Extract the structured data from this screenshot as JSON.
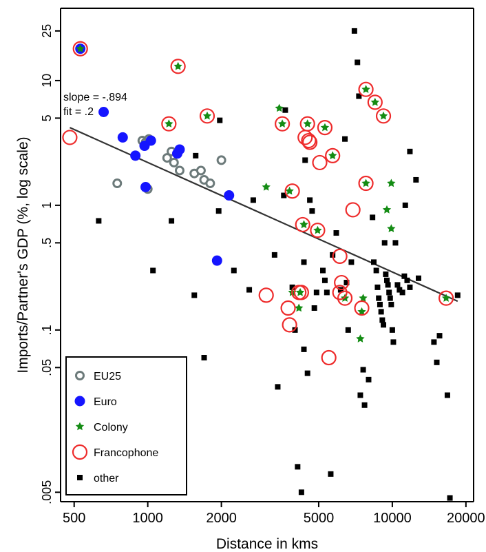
{
  "chart_data": {
    "type": "scatter",
    "title": "",
    "xlabel": "Distance in kms",
    "ylabel": "Imports/Partner's GDP (%, log scale)",
    "x_scale": "log",
    "y_scale": "log",
    "xlim": [
      440,
      21500
    ],
    "ylim": [
      0.0042,
      38
    ],
    "x_ticks": [
      {
        "value": 500,
        "label": "500"
      },
      {
        "value": 1000,
        "label": "1000"
      },
      {
        "value": 2000,
        "label": "2000"
      },
      {
        "value": 5000,
        "label": "5000"
      },
      {
        "value": 10000,
        "label": "10000"
      },
      {
        "value": 20000,
        "label": "20000"
      }
    ],
    "y_ticks": [
      {
        "value": 25,
        "label": "25"
      },
      {
        "value": 10,
        "label": "10"
      },
      {
        "value": 5,
        "label": "5"
      },
      {
        "value": 1,
        "label": "1"
      },
      {
        "value": 0.5,
        "label": ".5"
      },
      {
        "value": 0.1,
        "label": ".1"
      },
      {
        "value": 0.05,
        "label": ".05"
      },
      {
        "value": 0.005,
        "label": ".005"
      }
    ],
    "grid": false,
    "legend_position": "bottom-left",
    "annotations": {
      "slope": "slope = -.894",
      "fit": "fit = .2"
    },
    "fit_line": {
      "x": [
        480,
        18500
      ],
      "y": [
        4.2,
        0.17
      ]
    },
    "series": [
      {
        "name": "EU25",
        "marker": "hollow-circle",
        "color": "#6c7a7a",
        "points": [
          [
            750,
            1.5
          ],
          [
            950,
            3.3
          ],
          [
            980,
            3.2
          ],
          [
            1010,
            3.4
          ],
          [
            1000,
            1.35
          ],
          [
            1200,
            2.4
          ],
          [
            1250,
            2.7
          ],
          [
            1280,
            2.2
          ],
          [
            1350,
            1.9
          ],
          [
            1550,
            1.8
          ],
          [
            1650,
            1.9
          ],
          [
            1700,
            1.6
          ],
          [
            1800,
            1.5
          ],
          [
            2000,
            2.3
          ]
        ]
      },
      {
        "name": "Euro",
        "marker": "filled-circle",
        "color": "#1515ff",
        "points": [
          [
            530,
            18
          ],
          [
            660,
            5.6
          ],
          [
            790,
            3.5
          ],
          [
            890,
            2.5
          ],
          [
            970,
            3.0
          ],
          [
            980,
            1.4
          ],
          [
            1030,
            3.3
          ],
          [
            1320,
            2.6
          ],
          [
            1350,
            2.8
          ],
          [
            1920,
            0.36
          ],
          [
            2150,
            1.2
          ]
        ]
      },
      {
        "name": "Colony",
        "marker": "green-star",
        "color": "#148c14",
        "points": [
          [
            530,
            18
          ],
          [
            1220,
            4.5
          ],
          [
            1330,
            13
          ],
          [
            1750,
            5.2
          ],
          [
            3050,
            1.4
          ],
          [
            3450,
            6.0
          ],
          [
            3550,
            4.5
          ],
          [
            3800,
            1.3
          ],
          [
            3900,
            0.2
          ],
          [
            4150,
            0.15
          ],
          [
            4200,
            0.2
          ],
          [
            4350,
            0.7
          ],
          [
            4500,
            4.5
          ],
          [
            4950,
            0.63
          ],
          [
            5300,
            4.2
          ],
          [
            5700,
            2.5
          ],
          [
            6400,
            0.18
          ],
          [
            7400,
            0.085
          ],
          [
            7500,
            0.14
          ],
          [
            7600,
            0.18
          ],
          [
            7800,
            8.5
          ],
          [
            7800,
            1.5
          ],
          [
            8500,
            6.7
          ],
          [
            9200,
            5.2
          ],
          [
            9500,
            0.92
          ],
          [
            9900,
            1.5
          ],
          [
            9900,
            0.65
          ],
          [
            16600,
            0.18
          ]
        ]
      },
      {
        "name": "Francophone",
        "marker": "red-ring",
        "color": "#ee2b2b",
        "points": [
          [
            480,
            3.5
          ],
          [
            530,
            18
          ],
          [
            1220,
            4.5
          ],
          [
            1330,
            13
          ],
          [
            1750,
            5.2
          ],
          [
            3050,
            0.19
          ],
          [
            3550,
            4.5
          ],
          [
            3750,
            0.15
          ],
          [
            3800,
            0.11
          ],
          [
            3900,
            1.3
          ],
          [
            4150,
            0.2
          ],
          [
            4250,
            0.2
          ],
          [
            4300,
            0.7
          ],
          [
            4400,
            3.5
          ],
          [
            4500,
            4.5
          ],
          [
            4550,
            3.3
          ],
          [
            4600,
            3.2
          ],
          [
            4950,
            0.63
          ],
          [
            5050,
            2.2
          ],
          [
            5300,
            4.2
          ],
          [
            5500,
            0.06
          ],
          [
            5700,
            2.5
          ],
          [
            6100,
            0.39
          ],
          [
            6200,
            0.24
          ],
          [
            6100,
            0.2
          ],
          [
            6400,
            0.18
          ],
          [
            6900,
            0.92
          ],
          [
            7500,
            0.15
          ],
          [
            7800,
            8.5
          ],
          [
            7800,
            1.5
          ],
          [
            8500,
            6.7
          ],
          [
            9200,
            5.2
          ],
          [
            16600,
            0.18
          ]
        ]
      },
      {
        "name": "other",
        "marker": "black-square",
        "color": "#000000",
        "points": [
          [
            630,
            0.75
          ],
          [
            1050,
            0.3
          ],
          [
            1250,
            0.75
          ],
          [
            1550,
            0.19
          ],
          [
            1570,
            2.5
          ],
          [
            1700,
            0.06
          ],
          [
            1970,
            4.8
          ],
          [
            1950,
            0.9
          ],
          [
            2250,
            0.3
          ],
          [
            2600,
            0.21
          ],
          [
            2700,
            1.1
          ],
          [
            3300,
            0.4
          ],
          [
            3400,
            0.035
          ],
          [
            3600,
            1.2
          ],
          [
            3650,
            5.8
          ],
          [
            3900,
            0.22
          ],
          [
            4000,
            0.1
          ],
          [
            4100,
            0.008
          ],
          [
            4250,
            0.005
          ],
          [
            4350,
            0.35
          ],
          [
            4350,
            0.07
          ],
          [
            4400,
            2.3
          ],
          [
            4500,
            0.045
          ],
          [
            4600,
            1.1
          ],
          [
            4700,
            0.9
          ],
          [
            4800,
            0.15
          ],
          [
            4900,
            0.2
          ],
          [
            5200,
            0.3
          ],
          [
            5300,
            0.25
          ],
          [
            5400,
            0.2
          ],
          [
            5600,
            0.007
          ],
          [
            5700,
            0.4
          ],
          [
            5900,
            0.6
          ],
          [
            6150,
            0.21
          ],
          [
            6400,
            3.4
          ],
          [
            6500,
            0.24
          ],
          [
            6600,
            0.1
          ],
          [
            6800,
            0.35
          ],
          [
            7000,
            25
          ],
          [
            7200,
            14
          ],
          [
            7300,
            7.5
          ],
          [
            7400,
            0.03
          ],
          [
            7600,
            0.048
          ],
          [
            7700,
            0.025
          ],
          [
            8000,
            0.04
          ],
          [
            8300,
            0.8
          ],
          [
            8400,
            0.35
          ],
          [
            8600,
            0.3
          ],
          [
            8700,
            0.22
          ],
          [
            8800,
            0.18
          ],
          [
            8900,
            0.16
          ],
          [
            9000,
            0.14
          ],
          [
            9100,
            0.12
          ],
          [
            9200,
            0.11
          ],
          [
            9300,
            0.5
          ],
          [
            9400,
            0.28
          ],
          [
            9500,
            0.25
          ],
          [
            9600,
            0.23
          ],
          [
            9700,
            0.2
          ],
          [
            9800,
            0.18
          ],
          [
            9900,
            0.16
          ],
          [
            10000,
            0.1
          ],
          [
            10100,
            0.08
          ],
          [
            10300,
            0.5
          ],
          [
            10500,
            0.23
          ],
          [
            10700,
            0.21
          ],
          [
            11000,
            0.2
          ],
          [
            11200,
            0.27
          ],
          [
            11500,
            0.25
          ],
          [
            11800,
            0.22
          ],
          [
            11300,
            1.0
          ],
          [
            11800,
            2.7
          ],
          [
            12500,
            1.6
          ],
          [
            12800,
            0.26
          ],
          [
            14800,
            0.08
          ],
          [
            15200,
            0.055
          ],
          [
            15600,
            0.09
          ],
          [
            16800,
            0.03
          ],
          [
            17200,
            0.0045
          ],
          [
            18500,
            0.19
          ]
        ]
      }
    ]
  }
}
